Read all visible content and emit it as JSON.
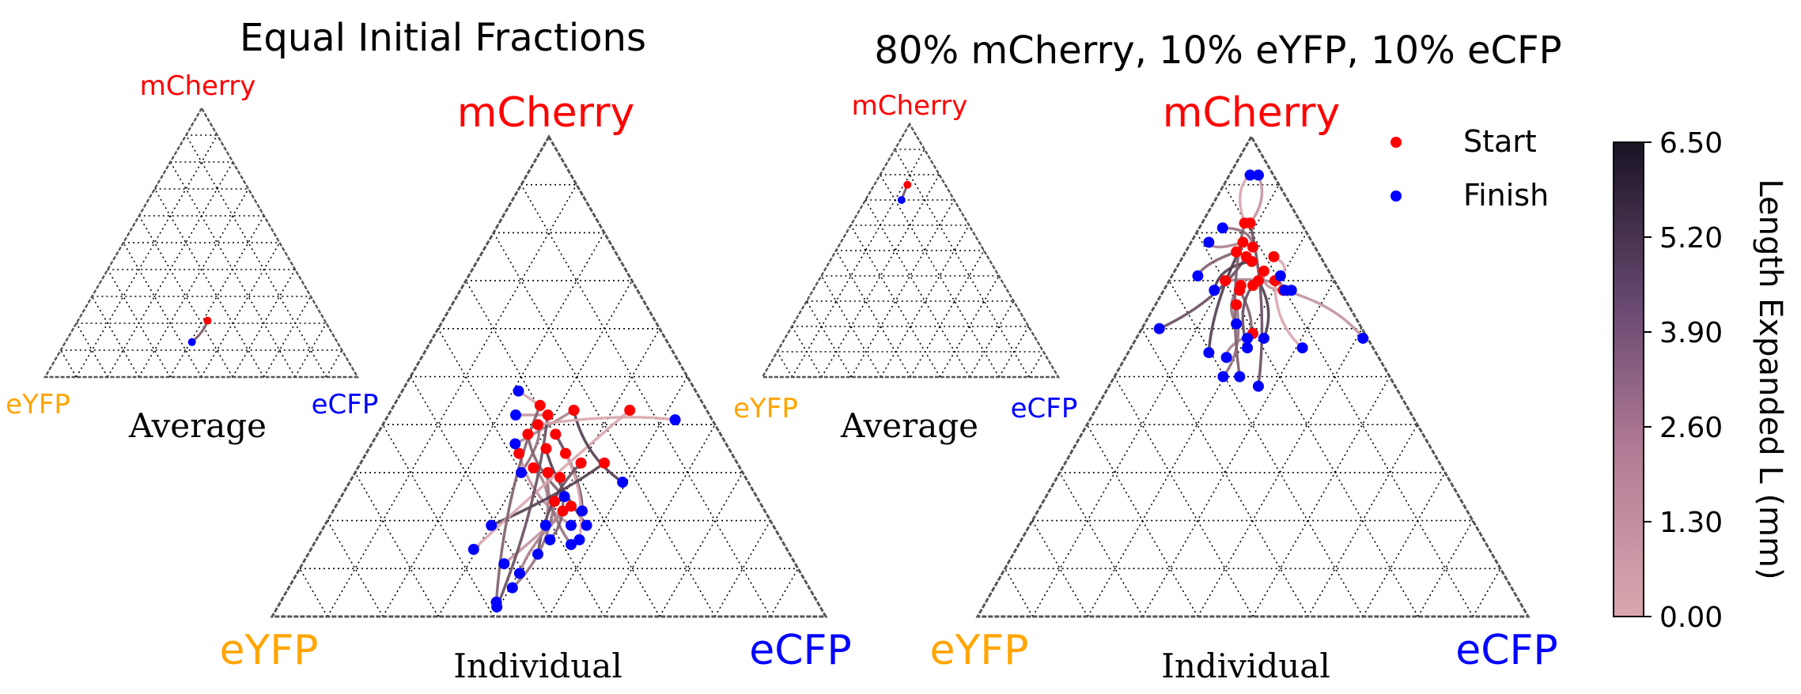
{
  "figure": {
    "left_title": "Equal Initial Fractions",
    "right_title": "80% mCherry, 10% eYFP, 10% eCFP",
    "average_label": "Average",
    "individual_label": "Individual"
  },
  "legend": {
    "start_label": "Start",
    "finish_label": "Finish"
  },
  "colorbar": {
    "label": "Length Expanded L (mm)",
    "ticks": [
      "0.00",
      "1.30",
      "2.60",
      "3.90",
      "5.20",
      "6.50"
    ]
  },
  "colors": {
    "mcherry": "#ff0000",
    "eyfp": "#ffa500",
    "ecfp": "#0000ff",
    "start": "#ff0000",
    "finish": "#0000ff",
    "track_low": "#d9a6ae",
    "track_high": "#1a1424"
  },
  "chart_data": [
    {
      "type": "scatter",
      "panel": "Equal Initial Fractions — Average",
      "vertices": {
        "top": "mCherry",
        "left": "eYFP",
        "right": "eCFP"
      },
      "start": [
        0.52,
        0.21
      ],
      "finish": [
        0.47,
        0.13
      ],
      "color_range": [
        0.0,
        6.5
      ]
    },
    {
      "type": "scatter",
      "panel": "Equal Initial Fractions — Individual",
      "vertices": {
        "top": "mCherry",
        "left": "eYFP",
        "right": "eCFP"
      },
      "starts": [
        [
          0.484,
          0.44
        ],
        [
          0.498,
          0.42
        ],
        [
          0.545,
          0.43
        ],
        [
          0.48,
          0.4
        ],
        [
          0.462,
          0.38
        ],
        [
          0.512,
          0.38
        ],
        [
          0.495,
          0.35
        ],
        [
          0.53,
          0.34
        ],
        [
          0.446,
          0.34
        ],
        [
          0.472,
          0.31
        ],
        [
          0.498,
          0.3
        ],
        [
          0.52,
          0.29
        ],
        [
          0.558,
          0.32
        ],
        [
          0.6,
          0.32
        ],
        [
          0.646,
          0.43
        ],
        [
          0.525,
          0.22
        ],
        [
          0.54,
          0.23
        ],
        [
          0.51,
          0.24
        ]
      ],
      "finishes": [
        [
          0.445,
          0.47
        ],
        [
          0.44,
          0.42
        ],
        [
          0.439,
          0.36
        ],
        [
          0.45,
          0.3
        ],
        [
          0.528,
          0.25
        ],
        [
          0.56,
          0.22
        ],
        [
          0.568,
          0.19
        ],
        [
          0.555,
          0.16
        ],
        [
          0.54,
          0.19
        ],
        [
          0.494,
          0.19
        ],
        [
          0.54,
          0.15
        ],
        [
          0.502,
          0.16
        ],
        [
          0.48,
          0.13
        ],
        [
          0.396,
          0.19
        ],
        [
          0.364,
          0.14
        ],
        [
          0.419,
          0.11
        ],
        [
          0.447,
          0.09
        ],
        [
          0.434,
          0.06
        ],
        [
          0.405,
          0.03
        ],
        [
          0.406,
          0.02
        ],
        [
          0.633,
          0.28
        ],
        [
          0.728,
          0.41
        ]
      ],
      "color_range": [
        0.0,
        6.5
      ]
    },
    {
      "type": "scatter",
      "panel": "80% mCherry, 10% eYFP, 10% eCFP — Average",
      "vertices": {
        "top": "mCherry",
        "left": "eYFP",
        "right": "eCFP"
      },
      "start": [
        0.49,
        0.76
      ],
      "finish": [
        0.47,
        0.7
      ],
      "color_range": [
        0.0,
        6.5
      ]
    },
    {
      "type": "scatter",
      "panel": "80% mCherry, 10% eYFP, 10% eCFP — Individual",
      "vertices": {
        "top": "mCherry",
        "left": "eYFP",
        "right": "eCFP"
      },
      "starts": [
        [
          0.485,
          0.82
        ],
        [
          0.495,
          0.82
        ],
        [
          0.482,
          0.78
        ],
        [
          0.5,
          0.77
        ],
        [
          0.47,
          0.76
        ],
        [
          0.488,
          0.75
        ],
        [
          0.498,
          0.74
        ],
        [
          0.538,
          0.75
        ],
        [
          0.52,
          0.72
        ],
        [
          0.45,
          0.7
        ],
        [
          0.478,
          0.69
        ],
        [
          0.476,
          0.68
        ],
        [
          0.5,
          0.69
        ],
        [
          0.51,
          0.7
        ],
        [
          0.54,
          0.7
        ],
        [
          0.555,
          0.68
        ],
        [
          0.5,
          0.59
        ],
        [
          0.47,
          0.65
        ]
      ],
      "finishes": [
        [
          0.495,
          0.92
        ],
        [
          0.51,
          0.92
        ],
        [
          0.42,
          0.78
        ],
        [
          0.445,
          0.81
        ],
        [
          0.4,
          0.71
        ],
        [
          0.33,
          0.6
        ],
        [
          0.43,
          0.68
        ],
        [
          0.55,
          0.71
        ],
        [
          0.558,
          0.68
        ],
        [
          0.57,
          0.68
        ],
        [
          0.47,
          0.61
        ],
        [
          0.49,
          0.58
        ],
        [
          0.49,
          0.56
        ],
        [
          0.52,
          0.58
        ],
        [
          0.59,
          0.56
        ],
        [
          0.7,
          0.58
        ],
        [
          0.452,
          0.54
        ],
        [
          0.446,
          0.5
        ],
        [
          0.476,
          0.5
        ],
        [
          0.51,
          0.48
        ],
        [
          0.42,
          0.55
        ]
      ],
      "color_range": [
        0.0,
        6.5
      ]
    }
  ]
}
